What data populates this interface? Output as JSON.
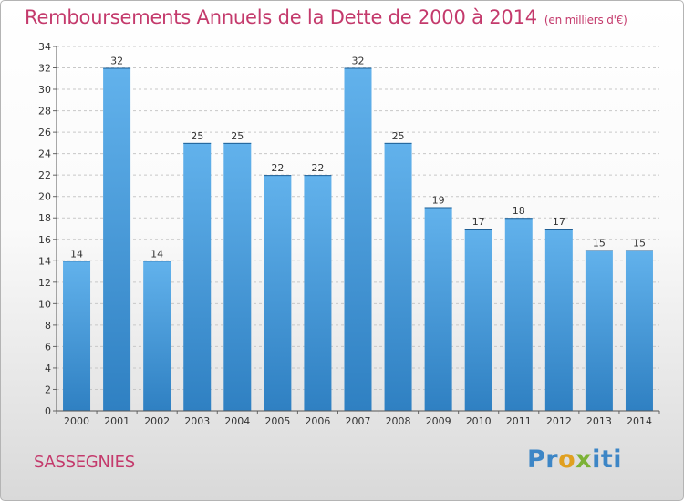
{
  "header": {
    "title": "Remboursements Annuels de la Dette de 2000 à 2014",
    "unit": "(en milliers d'€)"
  },
  "footer": {
    "commune": "SASSEGNIES",
    "logo_parts": [
      "Pr",
      "o",
      "x",
      "iti"
    ]
  },
  "colors": {
    "title": "#c43a6c",
    "bar_top": "#62b2ec",
    "bar_bottom": "#2f80c2"
  },
  "chart_data": {
    "type": "bar",
    "title": "Remboursements Annuels de la Dette de 2000 à 2014",
    "subtitle": "(en milliers d'€)",
    "xlabel": "",
    "ylabel": "",
    "categories": [
      "2000",
      "2001",
      "2002",
      "2003",
      "2004",
      "2005",
      "2006",
      "2007",
      "2008",
      "2009",
      "2010",
      "2011",
      "2012",
      "2013",
      "2014"
    ],
    "values": [
      14,
      32,
      14,
      25,
      25,
      22,
      22,
      32,
      25,
      19,
      17,
      18,
      17,
      15,
      15
    ],
    "ylim": [
      0,
      34
    ],
    "yticks": [
      0,
      2,
      4,
      6,
      8,
      10,
      12,
      14,
      16,
      18,
      20,
      22,
      24,
      26,
      28,
      30,
      32,
      34
    ],
    "grid": true,
    "data_labels": true
  }
}
